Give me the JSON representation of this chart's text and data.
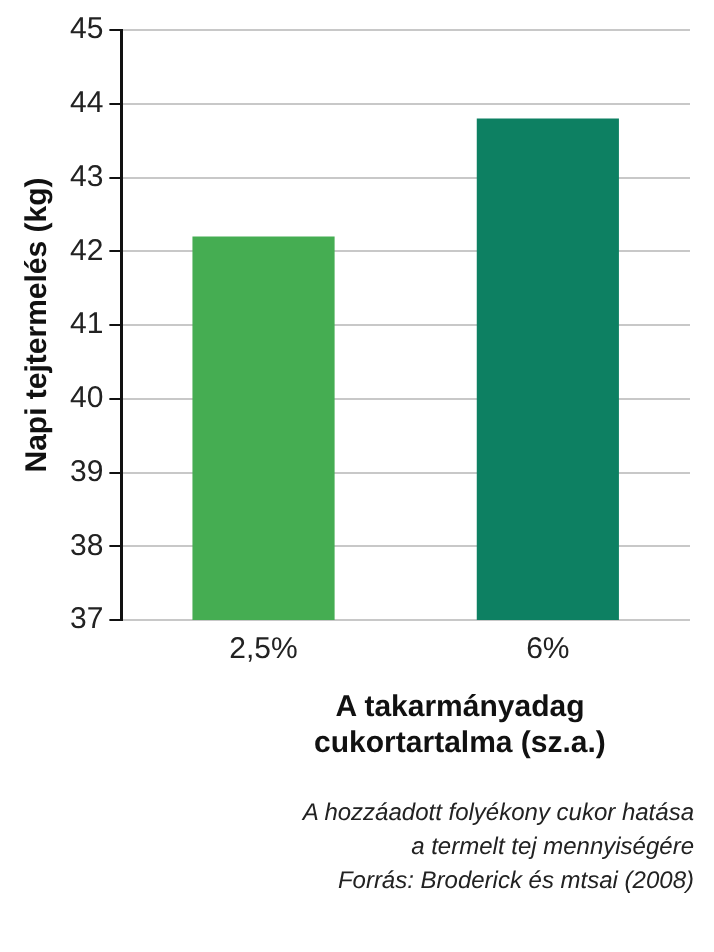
{
  "chart_data": {
    "type": "bar",
    "categories": [
      "2,5%",
      "6%"
    ],
    "values": [
      42.2,
      43.8
    ],
    "colors": [
      "#45ad52",
      "#0d8062"
    ],
    "ylim": [
      37,
      45
    ],
    "yticks": [
      37,
      38,
      39,
      40,
      41,
      42,
      43,
      44,
      45
    ],
    "ylabel": "Napi tejtermelés (kg)",
    "xlabel": "A takarmányadag cukortartalma (sz.a.)",
    "grid": "y",
    "annotations": [
      "A hozzáadott folyékony cukor hatása",
      "a termelt tej mennyiségére",
      "Forrás: Broderick és mtsai (2008)"
    ]
  }
}
